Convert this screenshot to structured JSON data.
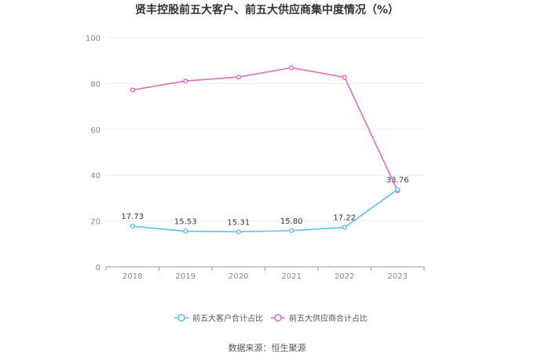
{
  "chart_data": {
    "type": "line",
    "title": "贤丰控股前五大客户、前五大供应商集中度情况（%）",
    "xlabel": "",
    "ylabel": "",
    "categories": [
      "2018",
      "2019",
      "2020",
      "2021",
      "2022",
      "2023"
    ],
    "ylim": [
      0,
      100
    ],
    "yticks": [
      0,
      20,
      40,
      60,
      80,
      100
    ],
    "grid": true,
    "legend_position": "bottom",
    "series": [
      {
        "name": "前五大客户合计占比",
        "color": "#5bc0f0",
        "values": [
          17.73,
          15.53,
          15.31,
          15.8,
          17.22,
          33.76
        ],
        "labels": [
          "17.73",
          "15.53",
          "15.31",
          "15.80",
          "17.22",
          "33.76"
        ]
      },
      {
        "name": "前五大供应商合计占比",
        "color": "#e06bbd",
        "values": [
          77.2,
          81.1,
          82.8,
          86.9,
          82.7,
          33.2
        ],
        "labels": []
      }
    ],
    "source": "数据来源：恒生聚源"
  }
}
